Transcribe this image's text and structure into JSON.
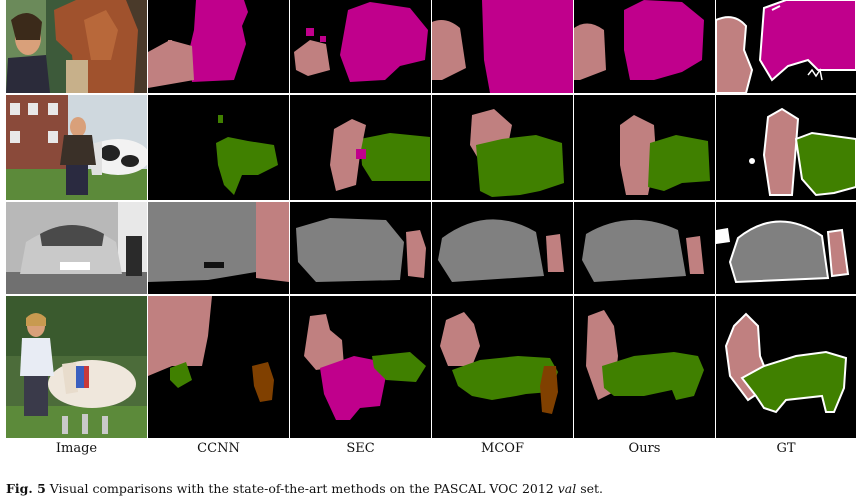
{
  "figure": {
    "columns": [
      {
        "key": "image",
        "label": "Image"
      },
      {
        "key": "ccnn",
        "label": "CCNN"
      },
      {
        "key": "sec",
        "label": "SEC"
      },
      {
        "key": "mcof",
        "label": "MCOF"
      },
      {
        "key": "ours",
        "label": "Ours"
      },
      {
        "key": "gt",
        "label": "GT"
      }
    ],
    "rows": [
      {
        "subject": "person-with-horse"
      },
      {
        "subject": "person-with-cow"
      },
      {
        "subject": "car-and-person"
      },
      {
        "subject": "woman-with-cow"
      }
    ],
    "class_colors": {
      "background": "#000000",
      "person": "#c08080",
      "horse": "#c0008c",
      "cow": "#408000",
      "car": "#808080",
      "sheep": "#804000",
      "boundary": "#ffffff"
    }
  },
  "caption": {
    "fig_number": "Fig. 5",
    "text_before": "Visual comparisons with the state-of-the-art methods on the PASCAL VOC 2012 ",
    "set_word": "val",
    "text_after": " set."
  }
}
